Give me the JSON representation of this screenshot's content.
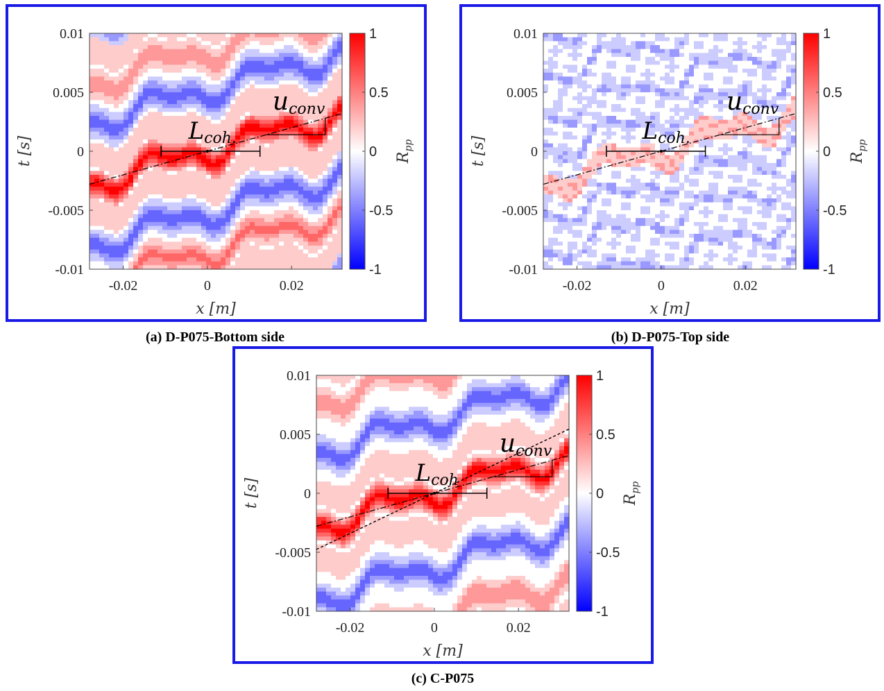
{
  "chart_data": [
    {
      "type": "heatmap",
      "caption": "(a) D-P075-Bottom side",
      "xlabel": "x [m]",
      "ylabel": "t [s]",
      "colorbar_label": "R_pp",
      "x_ticks": [
        "-0.02",
        "0",
        "0.02"
      ],
      "y_ticks": [
        "0.01",
        "0.005",
        "0",
        "-0.005",
        "-0.01"
      ],
      "cb_ticks": [
        "1",
        "0.5",
        "0",
        "-0.5",
        "-1"
      ],
      "xlim": [
        -0.028,
        0.032
      ],
      "ylim": [
        -0.01,
        0.01
      ],
      "clim": [
        -1,
        1
      ],
      "colormap": [
        "#0000ff",
        "#ffffff",
        "#ff0000"
      ],
      "annotations": {
        "coherence_length": "L",
        "coherence_sub": "coh.",
        "convection": "u",
        "convection_sub": "conv"
      },
      "coherence_interval": [
        -0.011,
        0.0125
      ],
      "convection_slope": 0.1,
      "noise": 0.0,
      "bands": [
        {
          "offset": 0.0,
          "level": 0.95
        },
        {
          "offset": 0.0024,
          "level": 0.3
        },
        {
          "offset": 0.0052,
          "level": -0.6
        },
        {
          "offset": 0.0085,
          "level": 0.45
        },
        {
          "offset": 0.0112,
          "level": 0.3
        },
        {
          "offset": 0.0135,
          "level": -0.5
        },
        {
          "offset": -0.0024,
          "level": 0.3
        },
        {
          "offset": -0.0052,
          "level": -0.6
        },
        {
          "offset": -0.0085,
          "level": 0.55
        },
        {
          "offset": -0.0112,
          "level": 0.3
        },
        {
          "offset": -0.0135,
          "level": -0.5
        }
      ]
    },
    {
      "type": "heatmap",
      "caption": "(b) D-P075-Top side",
      "xlabel": "x [m]",
      "ylabel": "t [s]",
      "colorbar_label": "R_pp",
      "x_ticks": [
        "-0.02",
        "0",
        "0.02"
      ],
      "y_ticks": [
        "0.01",
        "0.005",
        "0",
        "-0.005",
        "-0.01"
      ],
      "cb_ticks": [
        "1",
        "0.5",
        "0",
        "-0.5",
        "-1"
      ],
      "xlim": [
        -0.028,
        0.032
      ],
      "ylim": [
        -0.01,
        0.01
      ],
      "clim": [
        -1,
        1
      ],
      "colormap": [
        "#0000ff",
        "#ffffff",
        "#ff0000"
      ],
      "annotations": {
        "coherence_length": "L",
        "coherence_sub": "coh.",
        "convection": "u",
        "convection_sub": "conv"
      },
      "coherence_interval": [
        -0.013,
        0.0105
      ],
      "convection_slope": 0.1,
      "noise": 1.0,
      "bands": [
        {
          "offset": 0.0,
          "level": 0.3
        },
        {
          "offset": 0.0028,
          "level": -0.2
        },
        {
          "offset": 0.0058,
          "level": -0.2
        },
        {
          "offset": 0.0092,
          "level": -0.2
        },
        {
          "offset": 0.0125,
          "level": -0.2
        },
        {
          "offset": -0.0028,
          "level": -0.2
        },
        {
          "offset": -0.0058,
          "level": -0.2
        },
        {
          "offset": -0.0092,
          "level": -0.2
        },
        {
          "offset": -0.0125,
          "level": -0.2
        }
      ]
    },
    {
      "type": "heatmap",
      "caption": "(c) C-P075",
      "xlabel": "x [m]",
      "ylabel": "t [s]",
      "colorbar_label": "R_pp",
      "x_ticks": [
        "-0.02",
        "0",
        "0.02"
      ],
      "y_ticks": [
        "0.01",
        "0.005",
        "0",
        "-0.005",
        "-0.01"
      ],
      "cb_ticks": [
        "1",
        "0.5",
        "0",
        "-0.5",
        "-1"
      ],
      "xlim": [
        -0.028,
        0.032
      ],
      "ylim": [
        -0.01,
        0.01
      ],
      "clim": [
        -1,
        1
      ],
      "colormap": [
        "#0000ff",
        "#ffffff",
        "#ff0000"
      ],
      "annotations": {
        "coherence_length": "L",
        "coherence_sub": "coh",
        "convection": "u",
        "convection_sub": "conv"
      },
      "coherence_interval": [
        -0.011,
        0.0125
      ],
      "convection_slope": 0.1,
      "dashed_slope": 0.17,
      "noise": 0.0,
      "bands": [
        {
          "offset": 0.0,
          "level": 0.95
        },
        {
          "offset": 0.0028,
          "level": 0.3
        },
        {
          "offset": 0.0062,
          "level": -0.6
        },
        {
          "offset": 0.0105,
          "level": 0.45
        },
        {
          "offset": 0.0135,
          "level": 0.25
        },
        {
          "offset": -0.0028,
          "level": 0.3
        },
        {
          "offset": -0.0062,
          "level": -0.6
        },
        {
          "offset": -0.0105,
          "level": 0.5
        },
        {
          "offset": -0.0135,
          "level": 0.25
        }
      ]
    }
  ]
}
